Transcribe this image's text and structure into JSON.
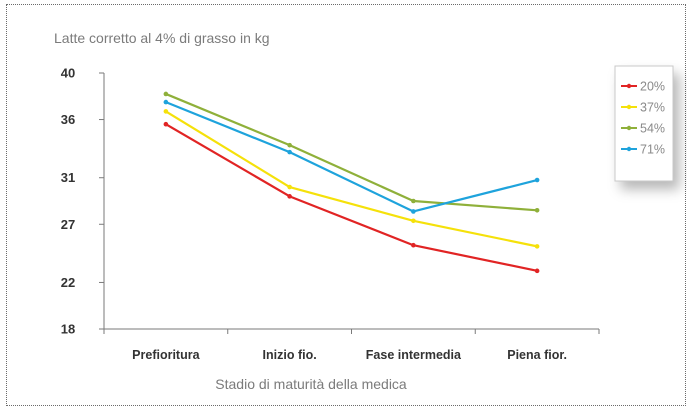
{
  "chart_data": {
    "type": "line",
    "title": "Latte corretto al 4% di grasso in kg",
    "xlabel": "Stadio di maturità della medica",
    "ylabel": "",
    "categories": [
      "Prefioritura",
      "Inizio fio.",
      "Fase intermedia",
      "Piena fior."
    ],
    "yticks": [
      "18",
      "22",
      "27",
      "31",
      "36",
      "40"
    ],
    "ylim": [
      18,
      40
    ],
    "grid": false,
    "legend_position": "right",
    "series": [
      {
        "name": "20%",
        "color": "#e12424",
        "values": [
          35.6,
          29.4,
          25.2,
          23.0
        ]
      },
      {
        "name": "37%",
        "color": "#f5e10a",
        "values": [
          36.7,
          30.2,
          27.3,
          25.1
        ]
      },
      {
        "name": "54%",
        "color": "#8fb03a",
        "values": [
          38.2,
          33.8,
          29.0,
          28.2
        ]
      },
      {
        "name": "71%",
        "color": "#1ea3dc",
        "values": [
          37.5,
          33.2,
          28.1,
          30.8
        ]
      }
    ]
  }
}
